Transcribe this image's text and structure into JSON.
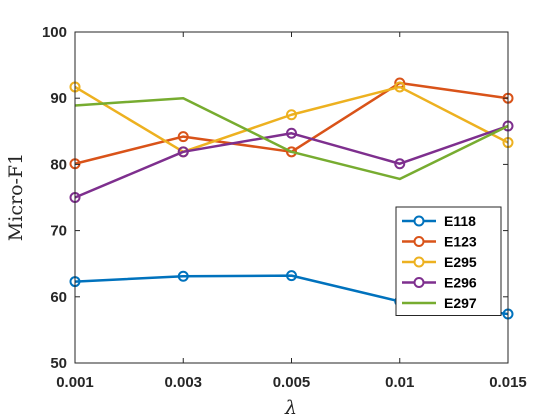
{
  "chart_data": {
    "type": "line",
    "x": [
      "0.001",
      "0.003",
      "0.005",
      "0.01",
      "0.015"
    ],
    "series": [
      {
        "name": "E118",
        "color": "#0072BD",
        "marker": "circle",
        "values": [
          62.3,
          63.1,
          63.2,
          59.3,
          57.4
        ]
      },
      {
        "name": "E123",
        "color": "#D95319",
        "marker": "circle",
        "values": [
          80.1,
          84.2,
          81.9,
          92.3,
          90.0
        ]
      },
      {
        "name": "E295",
        "color": "#EDB120",
        "marker": "circle",
        "values": [
          91.7,
          81.9,
          87.5,
          91.7,
          83.3
        ]
      },
      {
        "name": "E296",
        "color": "#7E2F8E",
        "marker": "circle",
        "values": [
          75.0,
          81.9,
          84.7,
          80.1,
          85.8
        ]
      },
      {
        "name": "E297",
        "color": "#77AC30",
        "marker": "none",
        "values": [
          88.9,
          90.0,
          81.9,
          77.8,
          85.8
        ]
      }
    ],
    "xlabel": "λ",
    "ylabel": "Micro-F1",
    "ylim": [
      50,
      100
    ],
    "yticks": [
      50,
      60,
      70,
      80,
      90,
      100
    ],
    "grid": false,
    "legend_position": "bottom-right"
  }
}
